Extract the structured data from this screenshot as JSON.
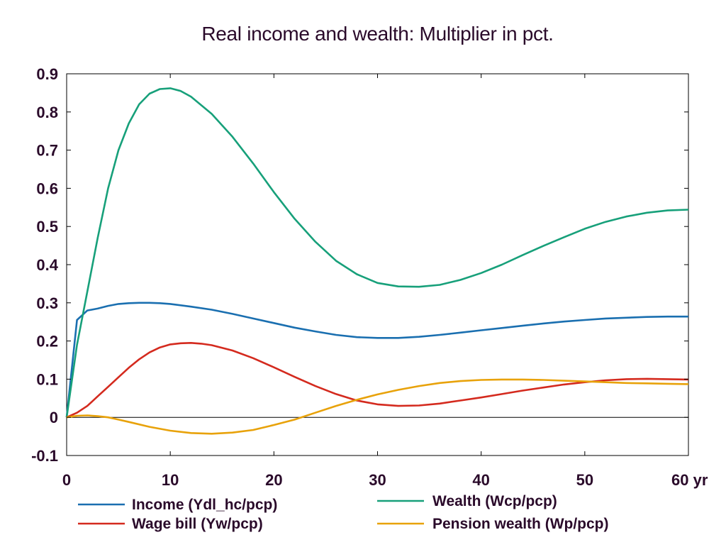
{
  "chart_data": {
    "type": "line",
    "title": "Real income and wealth: Multiplier in pct.",
    "xlabel_suffix": "yr",
    "xlim": [
      0,
      60
    ],
    "ylim": [
      -0.1,
      0.9
    ],
    "x_ticks": [
      "0",
      "10",
      "20",
      "30",
      "40",
      "50",
      "60 yr"
    ],
    "y_ticks": [
      "0.9",
      "0.8",
      "0.7",
      "0.6",
      "0.5",
      "0.4",
      "0.3",
      "0.2",
      "0.1",
      "0",
      "-0.1"
    ],
    "grid": false,
    "legend_position": "bottom",
    "series": [
      {
        "name": "Income (Ydl_hc/pcp)",
        "color": "#1a6fb0",
        "x": [
          0,
          1,
          2,
          3,
          4,
          5,
          6,
          7,
          8,
          9,
          10,
          12,
          14,
          16,
          18,
          20,
          22,
          24,
          26,
          28,
          30,
          32,
          34,
          36,
          38,
          40,
          42,
          44,
          46,
          48,
          50,
          52,
          54,
          56,
          58,
          60
        ],
        "values": [
          0.0,
          0.255,
          0.28,
          0.285,
          0.292,
          0.297,
          0.299,
          0.3,
          0.3,
          0.299,
          0.297,
          0.29,
          0.282,
          0.271,
          0.259,
          0.247,
          0.235,
          0.225,
          0.216,
          0.21,
          0.208,
          0.208,
          0.211,
          0.216,
          0.222,
          0.228,
          0.234,
          0.24,
          0.246,
          0.251,
          0.255,
          0.259,
          0.261,
          0.263,
          0.264,
          0.264
        ]
      },
      {
        "name": "Wealth (Wcp/pcp)",
        "color": "#17a07a",
        "x": [
          0,
          1,
          2,
          3,
          4,
          5,
          6,
          7,
          8,
          9,
          10,
          11,
          12,
          14,
          16,
          18,
          20,
          22,
          24,
          26,
          28,
          30,
          32,
          34,
          36,
          38,
          40,
          42,
          44,
          46,
          48,
          50,
          52,
          54,
          56,
          58,
          60
        ],
        "values": [
          0.0,
          0.19,
          0.33,
          0.47,
          0.6,
          0.7,
          0.77,
          0.82,
          0.848,
          0.86,
          0.862,
          0.855,
          0.84,
          0.795,
          0.735,
          0.665,
          0.59,
          0.52,
          0.46,
          0.41,
          0.375,
          0.352,
          0.343,
          0.342,
          0.347,
          0.36,
          0.378,
          0.4,
          0.425,
          0.449,
          0.472,
          0.494,
          0.512,
          0.526,
          0.536,
          0.542,
          0.544
        ]
      },
      {
        "name": "Wage bill (Yw/pcp)",
        "color": "#d42a1e",
        "x": [
          0,
          1,
          2,
          3,
          4,
          5,
          6,
          7,
          8,
          9,
          10,
          11,
          12,
          13,
          14,
          16,
          18,
          20,
          22,
          24,
          26,
          28,
          30,
          32,
          34,
          36,
          38,
          40,
          42,
          44,
          46,
          48,
          50,
          52,
          54,
          56,
          58,
          60
        ],
        "values": [
          0.0,
          0.012,
          0.03,
          0.055,
          0.08,
          0.105,
          0.13,
          0.152,
          0.17,
          0.183,
          0.191,
          0.194,
          0.195,
          0.193,
          0.189,
          0.175,
          0.155,
          0.131,
          0.106,
          0.082,
          0.061,
          0.044,
          0.034,
          0.03,
          0.031,
          0.036,
          0.044,
          0.052,
          0.061,
          0.07,
          0.078,
          0.086,
          0.092,
          0.097,
          0.1,
          0.101,
          0.1,
          0.099
        ]
      },
      {
        "name": "Pension wealth (Wp/pcp)",
        "color": "#e8a20a",
        "x": [
          0,
          1,
          2,
          3,
          4,
          5,
          6,
          8,
          10,
          12,
          14,
          16,
          18,
          20,
          22,
          24,
          26,
          28,
          30,
          32,
          34,
          36,
          38,
          40,
          42,
          44,
          46,
          48,
          50,
          52,
          54,
          56,
          58,
          60
        ],
        "values": [
          0.0,
          0.004,
          0.005,
          0.003,
          0.0,
          -0.006,
          -0.012,
          -0.025,
          -0.035,
          -0.041,
          -0.043,
          -0.04,
          -0.033,
          -0.02,
          -0.006,
          0.012,
          0.03,
          0.046,
          0.06,
          0.072,
          0.082,
          0.09,
          0.095,
          0.098,
          0.099,
          0.099,
          0.098,
          0.096,
          0.094,
          0.092,
          0.09,
          0.089,
          0.088,
          0.087
        ]
      }
    ]
  }
}
